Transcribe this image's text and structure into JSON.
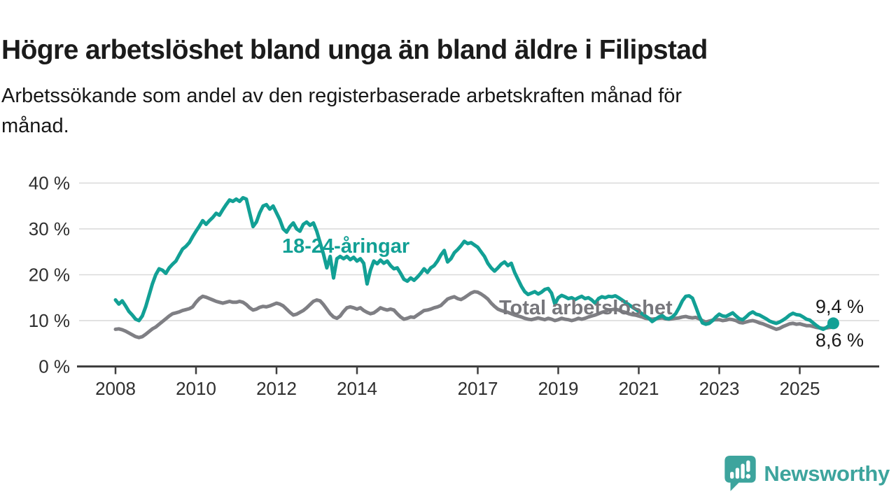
{
  "header": {
    "title": "Högre arbetslöshet bland unga än bland äldre i Filipstad",
    "subtitle_lines": [
      "Arbetssökande som andel av den registerbaserade arbetskraften månad för",
      "månad."
    ]
  },
  "chart_data": {
    "type": "line",
    "title": "Högre arbetslöshet bland unga än bland äldre i Filipstad",
    "subtitle": "Arbetssökande som andel av den registerbaserade arbetskraften månad för månad.",
    "unit": "%",
    "grid": "horizontal",
    "legend_position": "inline-labels-on-lines",
    "x_axis": {
      "ticks": [
        2008,
        2010,
        2012,
        2014,
        2017,
        2019,
        2021,
        2023,
        2025
      ],
      "start_year": 2008,
      "end_year": 2025.917
    },
    "y_axis": {
      "ticks": [
        0,
        10,
        20,
        30,
        40
      ],
      "tick_suffix": " %",
      "min": 0,
      "max": 40
    },
    "series": [
      {
        "name": "Total arbetslöshet",
        "color": "#7f7f84",
        "start_year": 2008,
        "points_per_year": 12,
        "end_label": "8,6 %",
        "end_dot": false,
        "values": [
          8.1,
          8.2,
          8.0,
          7.7,
          7.3,
          6.9,
          6.5,
          6.3,
          6.5,
          7.0,
          7.6,
          8.2,
          8.6,
          9.2,
          9.8,
          10.4,
          11.0,
          11.5,
          11.7,
          11.9,
          12.2,
          12.4,
          12.6,
          13.0,
          14.0,
          14.8,
          15.3,
          15.1,
          14.8,
          14.5,
          14.2,
          14.0,
          13.8,
          14.0,
          14.2,
          14.0,
          14.0,
          14.2,
          14.0,
          13.5,
          12.8,
          12.3,
          12.5,
          12.9,
          13.1,
          13.0,
          13.2,
          13.5,
          13.8,
          13.6,
          13.2,
          12.5,
          11.8,
          11.2,
          11.4,
          11.8,
          12.2,
          12.8,
          13.5,
          14.2,
          14.5,
          14.3,
          13.5,
          12.5,
          11.5,
          10.8,
          10.5,
          11.0,
          12.0,
          12.8,
          13.0,
          12.8,
          12.5,
          12.8,
          12.2,
          11.8,
          11.5,
          11.7,
          12.2,
          12.8,
          12.5,
          12.3,
          12.5,
          12.3,
          11.5,
          10.8,
          10.3,
          10.5,
          10.8,
          10.7,
          11.2,
          11.7,
          12.2,
          12.3,
          12.5,
          12.8,
          13.0,
          13.3,
          14.0,
          14.7,
          15.0,
          15.2,
          14.8,
          14.6,
          15.0,
          15.5,
          16.0,
          16.3,
          16.2,
          15.8,
          15.3,
          14.7,
          13.8,
          13.1,
          12.5,
          12.2,
          12.0,
          11.8,
          11.5,
          11.2,
          11.0,
          10.8,
          10.5,
          10.3,
          10.2,
          10.4,
          10.6,
          10.4,
          10.2,
          10.5,
          10.3,
          10.0,
          10.2,
          10.5,
          10.3,
          10.2,
          10.0,
          10.2,
          10.5,
          10.3,
          10.5,
          10.8,
          11.0,
          11.2,
          11.5,
          11.8,
          12.0,
          12.3,
          12.4,
          12.5,
          12.3,
          12.0,
          11.8,
          11.5,
          11.3,
          11.2,
          11.0,
          10.8,
          10.5,
          10.4,
          10.3,
          10.4,
          10.5,
          10.6,
          10.4,
          10.3,
          10.4,
          10.5,
          10.6,
          10.8,
          10.9,
          10.7,
          10.6,
          10.7,
          10.4,
          10.0,
          9.7,
          9.9,
          10.1,
          10.2,
          10.2,
          10.0,
          10.1,
          10.3,
          10.2,
          10.0,
          9.6,
          9.5,
          9.7,
          9.9,
          10.0,
          9.8,
          9.5,
          9.3,
          9.0,
          8.7,
          8.4,
          8.1,
          8.3,
          8.7,
          9.0,
          9.3,
          9.4,
          9.2,
          9.3,
          9.1,
          8.9,
          8.9,
          8.7,
          8.5,
          8.4,
          8.3,
          8.4,
          8.5,
          8.6
        ]
      },
      {
        "name": "18-24-åringar",
        "color": "#12a095",
        "start_year": 2008,
        "points_per_year": 12,
        "end_label": "9,4 %",
        "end_dot": true,
        "values": [
          14.5,
          13.6,
          14.3,
          13.2,
          12.0,
          11.2,
          10.3,
          10.0,
          11.0,
          13.0,
          15.5,
          18.0,
          20.0,
          21.3,
          21.0,
          20.3,
          21.5,
          22.3,
          23.0,
          24.3,
          25.6,
          26.2,
          27.0,
          28.3,
          29.5,
          30.6,
          31.8,
          31.0,
          31.8,
          32.5,
          33.4,
          33.0,
          34.2,
          35.3,
          36.3,
          36.0,
          36.5,
          36.0,
          36.8,
          36.5,
          33.5,
          30.5,
          31.5,
          33.5,
          35.0,
          35.3,
          34.3,
          35.0,
          33.5,
          32.0,
          30.0,
          29.3,
          30.5,
          31.3,
          30.0,
          29.5,
          31.0,
          31.5,
          30.8,
          31.3,
          29.5,
          27.0,
          24.5,
          21.5,
          24.0,
          19.3,
          23.5,
          24.0,
          23.5,
          24.0,
          23.3,
          23.8,
          23.0,
          23.5,
          22.5,
          18.0,
          21.0,
          23.0,
          22.4,
          23.2,
          22.5,
          23.0,
          22.0,
          21.3,
          21.5,
          20.3,
          19.0,
          18.6,
          19.3,
          18.8,
          19.5,
          20.3,
          21.3,
          20.5,
          21.5,
          22.0,
          23.0,
          24.3,
          25.3,
          22.8,
          23.5,
          24.8,
          25.5,
          26.3,
          27.3,
          26.8,
          27.0,
          26.5,
          26.0,
          25.0,
          24.0,
          22.5,
          21.5,
          20.8,
          21.5,
          22.3,
          22.8,
          22.0,
          22.5,
          20.5,
          19.0,
          17.5,
          16.3,
          15.7,
          16.0,
          16.3,
          15.8,
          16.2,
          16.8,
          17.0,
          16.0,
          13.6,
          15.0,
          15.5,
          15.2,
          14.8,
          15.0,
          14.6,
          15.0,
          15.3,
          14.8,
          15.0,
          14.5,
          13.8,
          14.8,
          15.2,
          15.0,
          15.3,
          15.2,
          15.4,
          15.0,
          14.5,
          14.0,
          13.5,
          13.0,
          12.5,
          12.0,
          11.5,
          11.0,
          10.5,
          9.8,
          10.3,
          10.8,
          11.1,
          10.5,
          10.4,
          10.8,
          11.5,
          12.8,
          14.3,
          15.3,
          15.4,
          14.9,
          13.0,
          11.0,
          9.5,
          9.2,
          9.4,
          10.0,
          10.8,
          11.4,
          11.0,
          10.9,
          11.3,
          11.7,
          11.0,
          10.4,
          10.2,
          10.8,
          11.5,
          11.9,
          11.4,
          11.2,
          10.8,
          10.4,
          9.9,
          9.6,
          9.4,
          9.7,
          10.1,
          10.6,
          11.2,
          11.6,
          11.3,
          11.2,
          10.8,
          10.3,
          10.1,
          9.5,
          8.9,
          8.4,
          8.1,
          8.5,
          9.1,
          9.4
        ]
      }
    ]
  },
  "colors": {
    "young_line": "#12a095",
    "total_line": "#7f7f84",
    "grid": "#d9d9d9",
    "axis": "#3f3f3f",
    "text": "#2f2f2f"
  },
  "footer": {
    "brand": "Newsworthy",
    "brand_color": "#3da49d",
    "logo_icon": "bar-chart-speech-bubble-icon"
  }
}
